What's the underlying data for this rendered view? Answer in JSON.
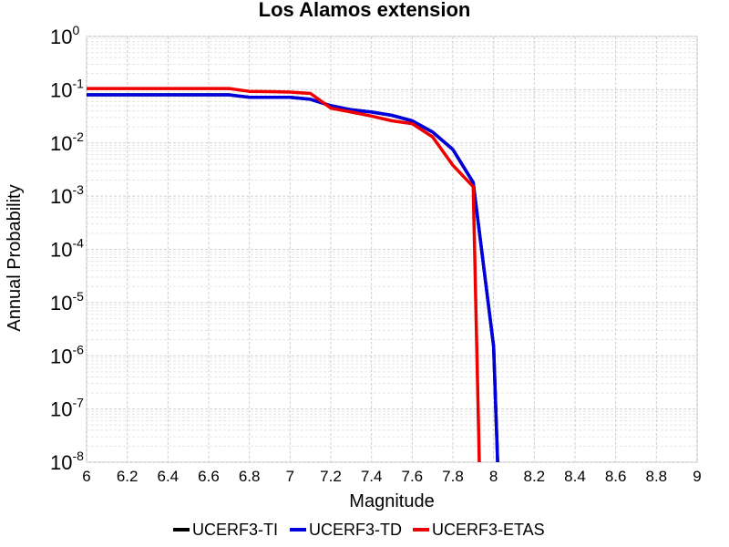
{
  "chart_data": {
    "type": "line",
    "title": "Los Alamos extension",
    "xlabel": "Magnitude",
    "ylabel": "Annual Probability",
    "xlim": [
      6,
      9
    ],
    "ylim": [
      1e-08,
      1
    ],
    "yscale": "log",
    "grid": true,
    "legend_position": "bottom",
    "x_ticks": [
      "6",
      "6.2",
      "6.4",
      "6.6",
      "6.8",
      "7",
      "7.2",
      "7.4",
      "7.6",
      "7.8",
      "8",
      "8.2",
      "8.4",
      "8.6",
      "8.8",
      "9"
    ],
    "y_tick_base": "10",
    "y_tick_exponents": [
      "0",
      "-1",
      "-2",
      "-3",
      "-4",
      "-5",
      "-6",
      "-7",
      "-8"
    ],
    "series": [
      {
        "name": "UCERF3-TI",
        "color": "#000000",
        "x": [
          6.0,
          6.1,
          6.2,
          6.3,
          6.4,
          6.5,
          6.6,
          6.7,
          6.8,
          6.9,
          7.0,
          7.1,
          7.2,
          7.3,
          7.4,
          7.5,
          7.6,
          7.7,
          7.8,
          7.9,
          8.0,
          8.02
        ],
        "y": [
          0.08,
          0.08,
          0.08,
          0.08,
          0.08,
          0.08,
          0.08,
          0.08,
          0.072,
          0.072,
          0.072,
          0.066,
          0.05,
          0.042,
          0.038,
          0.033,
          0.026,
          0.016,
          0.0075,
          0.0018,
          1.5e-06,
          1e-08
        ]
      },
      {
        "name": "UCERF3-TD",
        "color": "#0000dd",
        "x": [
          6.0,
          6.1,
          6.2,
          6.3,
          6.4,
          6.5,
          6.6,
          6.7,
          6.8,
          6.9,
          7.0,
          7.1,
          7.2,
          7.3,
          7.4,
          7.5,
          7.6,
          7.7,
          7.8,
          7.9,
          8.0,
          8.02
        ],
        "y": [
          0.08,
          0.08,
          0.08,
          0.08,
          0.08,
          0.08,
          0.08,
          0.08,
          0.072,
          0.072,
          0.072,
          0.066,
          0.05,
          0.042,
          0.038,
          0.033,
          0.026,
          0.016,
          0.0075,
          0.0018,
          1.5e-06,
          1e-08
        ]
      },
      {
        "name": "UCERF3-ETAS",
        "color": "#ee0000",
        "x": [
          6.0,
          6.1,
          6.2,
          6.3,
          6.4,
          6.5,
          6.6,
          6.7,
          6.8,
          6.9,
          7.0,
          7.1,
          7.2,
          7.3,
          7.4,
          7.5,
          7.6,
          7.7,
          7.8,
          7.9,
          7.93
        ],
        "y": [
          0.105,
          0.105,
          0.105,
          0.105,
          0.105,
          0.105,
          0.105,
          0.105,
          0.093,
          0.092,
          0.09,
          0.085,
          0.045,
          0.038,
          0.032,
          0.026,
          0.023,
          0.013,
          0.0038,
          0.0015,
          1e-08
        ]
      }
    ]
  }
}
